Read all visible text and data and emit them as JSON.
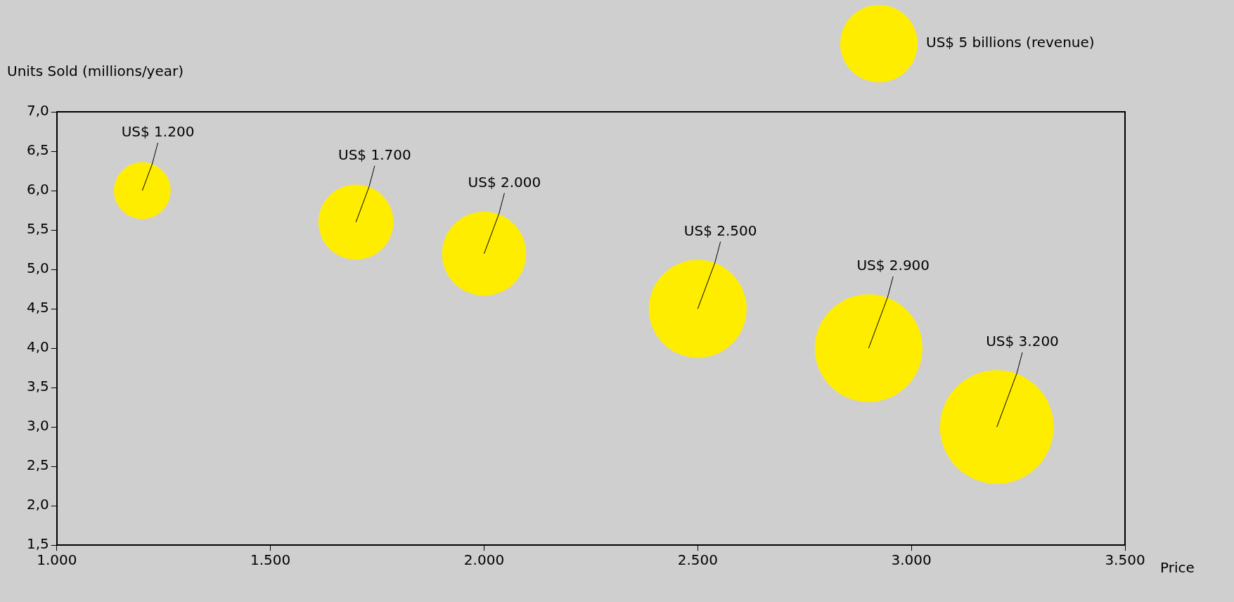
{
  "chart_data": {
    "type": "bubble",
    "xlabel": "Price",
    "ylabel": "Units Sold (millions/year)",
    "x": [
      1200,
      1700,
      2000,
      2500,
      2900,
      3200
    ],
    "values": [
      6.0,
      5.6,
      5.2,
      4.5,
      4.0,
      3.0
    ],
    "sizes": [
      2.7,
      4.7,
      5.9,
      8.0,
      9.7,
      10.8
    ],
    "size_legend": [
      {
        "value": 5,
        "label": "US$ 5 billions (revenue)"
      }
    ],
    "color": "#ffed00",
    "xlim": [
      1000,
      3500
    ],
    "xticks": [
      {
        "value": 1000,
        "label": "1.000"
      },
      {
        "value": 1500,
        "label": "1.500"
      },
      {
        "value": 2000,
        "label": "2.000"
      },
      {
        "value": 2500,
        "label": "2.500"
      },
      {
        "value": 3000,
        "label": "3.000"
      },
      {
        "value": 3500,
        "label": "3.500"
      }
    ],
    "ylim": [
      1.5,
      7.0
    ],
    "yticks": [
      {
        "value": 1.5,
        "label": "1,5"
      },
      {
        "value": 2.0,
        "label": "2,0"
      },
      {
        "value": 2.5,
        "label": "2,5"
      },
      {
        "value": 3.0,
        "label": "3,0"
      },
      {
        "value": 3.5,
        "label": "3,5"
      },
      {
        "value": 4.0,
        "label": "4,0"
      },
      {
        "value": 4.5,
        "label": "4,5"
      },
      {
        "value": 5.0,
        "label": "5,0"
      },
      {
        "value": 5.5,
        "label": "5,5"
      },
      {
        "value": 6.0,
        "label": "6,0"
      },
      {
        "value": 6.5,
        "label": "6,5"
      },
      {
        "value": 7.0,
        "label": "7,0"
      }
    ],
    "annotations": [
      {
        "text": "US$ 1.200",
        "x": 1200,
        "y": 6.0
      },
      {
        "text": "US$ 1.700",
        "x": 1700,
        "y": 5.6
      },
      {
        "text": "US$ 2.000",
        "x": 2000,
        "y": 5.2
      },
      {
        "text": "US$ 2.500",
        "x": 2500,
        "y": 4.5
      },
      {
        "text": "US$ 2.900",
        "x": 2900,
        "y": 4.0
      },
      {
        "text": "US$ 3.200",
        "x": 3200,
        "y": 3.0
      }
    ],
    "legend": false
  }
}
